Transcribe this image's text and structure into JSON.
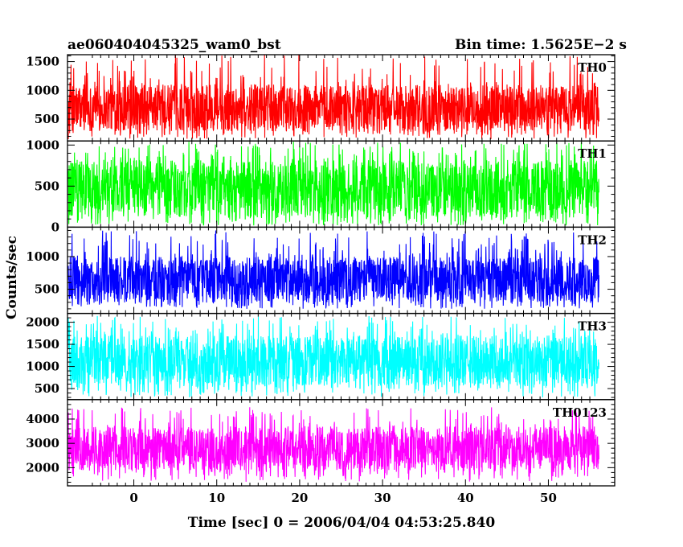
{
  "chart_data": {
    "type": "line",
    "title_left": "ae060404045325_wam0_bst",
    "title_right": "Bin time: 1.5625E−2 s",
    "xlabel": "Time [sec] 0 = 2006/04/04 04:53:25.840",
    "ylabel": "Counts/sec",
    "xlim": [
      -8,
      58
    ],
    "x_ticks": [
      0,
      10,
      20,
      30,
      40,
      50
    ],
    "data_x_range": [
      -7.9,
      56.1
    ],
    "grid": false,
    "panels": [
      {
        "name": "TH0",
        "color": "#ff0000",
        "ylim": [
          120,
          1620
        ],
        "y_ticks": [
          500,
          1000,
          1500
        ],
        "series_stats": {
          "min": 150,
          "typical_low": 290,
          "typical_high": 1100,
          "max": 1620
        }
      },
      {
        "name": "TH1",
        "color": "#00ff00",
        "ylim": [
          0,
          1050
        ],
        "y_ticks": [
          0,
          500,
          1000
        ],
        "series_stats": {
          "min": 20,
          "typical_low": 120,
          "typical_high": 820,
          "max": 1040
        }
      },
      {
        "name": "TH2",
        "color": "#0000ff",
        "ylim": [
          130,
          1450
        ],
        "y_ticks": [
          500,
          1000
        ],
        "series_stats": {
          "min": 200,
          "typical_low": 300,
          "typical_high": 1000,
          "max": 1400
        }
      },
      {
        "name": "TH3",
        "color": "#00ffff",
        "ylim": [
          250,
          2200
        ],
        "y_ticks": [
          500,
          1000,
          1500,
          2000
        ],
        "series_stats": {
          "min": 300,
          "typical_low": 550,
          "typical_high": 1700,
          "max": 2150
        }
      },
      {
        "name": "TH0123",
        "color": "#ff00ff",
        "ylim": [
          1250,
          4800
        ],
        "y_ticks": [
          2000,
          3000,
          4000
        ],
        "series_stats": {
          "min": 1400,
          "typical_low": 1900,
          "typical_high": 3700,
          "max": 4500
        }
      }
    ]
  }
}
